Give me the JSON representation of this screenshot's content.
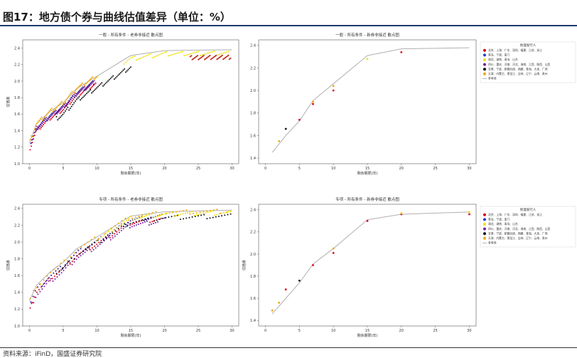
{
  "figure": {
    "title": "图17：地方债个券与曲线估值差异（单位：%）",
    "source": "资料来源：iFinD，国盛证券研究院"
  },
  "chart_data": [
    {
      "type": "scatter",
      "title": "一般 - 所有条件 - 老券非接近 散点图",
      "xlabel": "剩余期限(年)",
      "ylabel": "估值差",
      "xlim": [
        -1,
        31
      ],
      "ylim": [
        1.0,
        2.5
      ],
      "xticks": [
        0,
        5,
        10,
        15,
        20,
        25,
        30
      ],
      "yticks": [
        1.0,
        1.2,
        1.4,
        1.6,
        1.8,
        2.0,
        2.2,
        2.4
      ],
      "grid": false,
      "legend": "none",
      "ref_line": {
        "x": [
          0,
          1,
          3,
          5,
          7,
          10,
          15,
          20,
          30
        ],
        "y": [
          1.25,
          1.48,
          1.63,
          1.74,
          1.91,
          2.06,
          2.31,
          2.37,
          2.38
        ]
      },
      "bands": [
        {
          "color": "#e0001b",
          "x_from": 0.1,
          "x_to": 9.8,
          "offset": -0.08
        },
        {
          "color": "#2a1a8f",
          "x_from": 0.2,
          "x_to": 9.5,
          "offset": -0.05
        },
        {
          "color": "#111111",
          "x_from": 4.0,
          "x_to": 15.0,
          "offset": -0.14
        },
        {
          "color": "#7a1fa2",
          "x_from": 0.3,
          "x_to": 9.6,
          "offset": -0.06
        },
        {
          "color": "#f5a500",
          "x_from": 0.1,
          "x_to": 10.0,
          "offset": 0.0
        },
        {
          "color": "#f0e000",
          "x_from": 14.0,
          "x_to": 29.5,
          "offset": -0.04
        },
        {
          "color": "#c0392b",
          "x_from": 23.8,
          "x_to": 29.8,
          "offset": -0.09
        }
      ]
    },
    {
      "type": "scatter",
      "title": "一般 - 所有条件 - 新券非接近 散点图",
      "xlabel": "剩余期限(年)",
      "ylabel": "",
      "xlim": [
        -1,
        31
      ],
      "ylim": [
        1.35,
        2.45
      ],
      "xticks": [
        0,
        5,
        10,
        15,
        20,
        25,
        30
      ],
      "yticks": [
        1.4,
        1.6,
        1.8,
        2.0,
        2.2,
        2.4
      ],
      "grid": false,
      "legend": "right",
      "ref_line": {
        "x": [
          1,
          3,
          5,
          7,
          10,
          15,
          20,
          30
        ],
        "y": [
          1.45,
          1.6,
          1.73,
          1.91,
          2.06,
          2.31,
          2.37,
          2.38
        ]
      },
      "points": [
        {
          "x": 2.0,
          "y": 1.55,
          "color": "#f5a500"
        },
        {
          "x": 3.0,
          "y": 1.66,
          "color": "#111111"
        },
        {
          "x": 5.0,
          "y": 1.74,
          "color": "#e0001b"
        },
        {
          "x": 7.0,
          "y": 1.88,
          "color": "#e0001b"
        },
        {
          "x": 7.0,
          "y": 1.9,
          "color": "#f5a500"
        },
        {
          "x": 10.0,
          "y": 2.0,
          "color": "#e0001b"
        },
        {
          "x": 10.0,
          "y": 2.04,
          "color": "#f5a500"
        },
        {
          "x": 15.0,
          "y": 2.28,
          "color": "#f0e000"
        },
        {
          "x": 20.0,
          "y": 2.34,
          "color": "#e0001b"
        }
      ]
    },
    {
      "type": "scatter",
      "title": "专项 - 所有条件 - 老券非接近 散点图",
      "xlabel": "剩余期限(年)",
      "ylabel": "估值差",
      "xlim": [
        -1,
        31
      ],
      "ylim": [
        1.0,
        2.45
      ],
      "xticks": [
        0,
        5,
        10,
        15,
        20,
        25,
        30
      ],
      "yticks": [
        1.0,
        1.2,
        1.4,
        1.6,
        1.8,
        2.0,
        2.2,
        2.4
      ],
      "grid": false,
      "legend": "none",
      "ref_line": {
        "x": [
          0,
          1,
          3,
          5,
          7,
          10,
          15,
          20,
          30
        ],
        "y": [
          1.3,
          1.48,
          1.64,
          1.76,
          1.92,
          2.06,
          2.31,
          2.36,
          2.38
        ]
      },
      "bands": [
        {
          "color": "#e0001b",
          "x_from": 0.1,
          "x_to": 19.5,
          "offset": -0.08
        },
        {
          "color": "#2a1a8f",
          "x_from": 0.2,
          "x_to": 20.0,
          "offset": -0.05
        },
        {
          "color": "#7a1fa2",
          "x_from": 0.3,
          "x_to": 19.0,
          "offset": -0.11
        },
        {
          "color": "#111111",
          "x_from": 4.0,
          "x_to": 29.8,
          "offset": -0.07
        },
        {
          "color": "#f5a500",
          "x_from": 0.1,
          "x_to": 29.8,
          "offset": -0.01
        },
        {
          "color": "#f0e000",
          "x_from": 10.0,
          "x_to": 29.8,
          "offset": -0.03
        }
      ]
    },
    {
      "type": "scatter",
      "title": "专项 - 所有条件 - 新券非接近 散点图",
      "xlabel": "剩余期限(年)",
      "ylabel": "估值差",
      "xlim": [
        -1,
        31
      ],
      "ylim": [
        1.35,
        2.45
      ],
      "xticks": [
        0,
        5,
        10,
        15,
        20,
        25,
        30
      ],
      "yticks": [
        1.4,
        1.6,
        1.8,
        2.0,
        2.2,
        2.4
      ],
      "grid": false,
      "legend": "right",
      "ref_line": {
        "x": [
          1,
          3,
          5,
          7,
          10,
          15,
          20,
          30
        ],
        "y": [
          1.46,
          1.6,
          1.74,
          1.91,
          2.05,
          2.31,
          2.36,
          2.38
        ]
      },
      "points": [
        {
          "x": 1.0,
          "y": 1.49,
          "color": "#f5a500"
        },
        {
          "x": 2.0,
          "y": 1.56,
          "color": "#f5a500"
        },
        {
          "x": 3.0,
          "y": 1.68,
          "color": "#e0001b"
        },
        {
          "x": 5.0,
          "y": 1.76,
          "color": "#111111"
        },
        {
          "x": 7.0,
          "y": 1.9,
          "color": "#e0001b"
        },
        {
          "x": 10.0,
          "y": 2.01,
          "color": "#e0001b"
        },
        {
          "x": 10.0,
          "y": 2.05,
          "color": "#f5a500"
        },
        {
          "x": 15.0,
          "y": 2.3,
          "color": "#e0001b"
        },
        {
          "x": 20.0,
          "y": 2.36,
          "color": "#e0001b"
        },
        {
          "x": 20.0,
          "y": 2.37,
          "color": "#f0e000"
        },
        {
          "x": 30.0,
          "y": 2.36,
          "color": "#e0001b"
        },
        {
          "x": 30.0,
          "y": 2.38,
          "color": "#f0e000"
        }
      ]
    }
  ],
  "legend": {
    "title": "地理发行人",
    "items": [
      {
        "color": "#e0001b",
        "label": "北京、上海、广东、深圳、福建、江苏、浙江"
      },
      {
        "color": "#1f3fd0",
        "label": "青岛、宁波、厦门"
      },
      {
        "color": "#f0e000",
        "label": "湖北、湖南、青岛、山东"
      },
      {
        "color": "#7a1fa2",
        "label": "四川、重庆、河南、河北、海南、江西、陕西、山西"
      },
      {
        "color": "#111111",
        "label": "甘肃、宁夏、新疆兵团、西藏、青海、大连、广西"
      },
      {
        "color": "#f5a500",
        "label": "天津、内蒙古、黑龙江、吉林、辽宁、云南、贵州"
      }
    ],
    "ref_label": "参考线"
  }
}
